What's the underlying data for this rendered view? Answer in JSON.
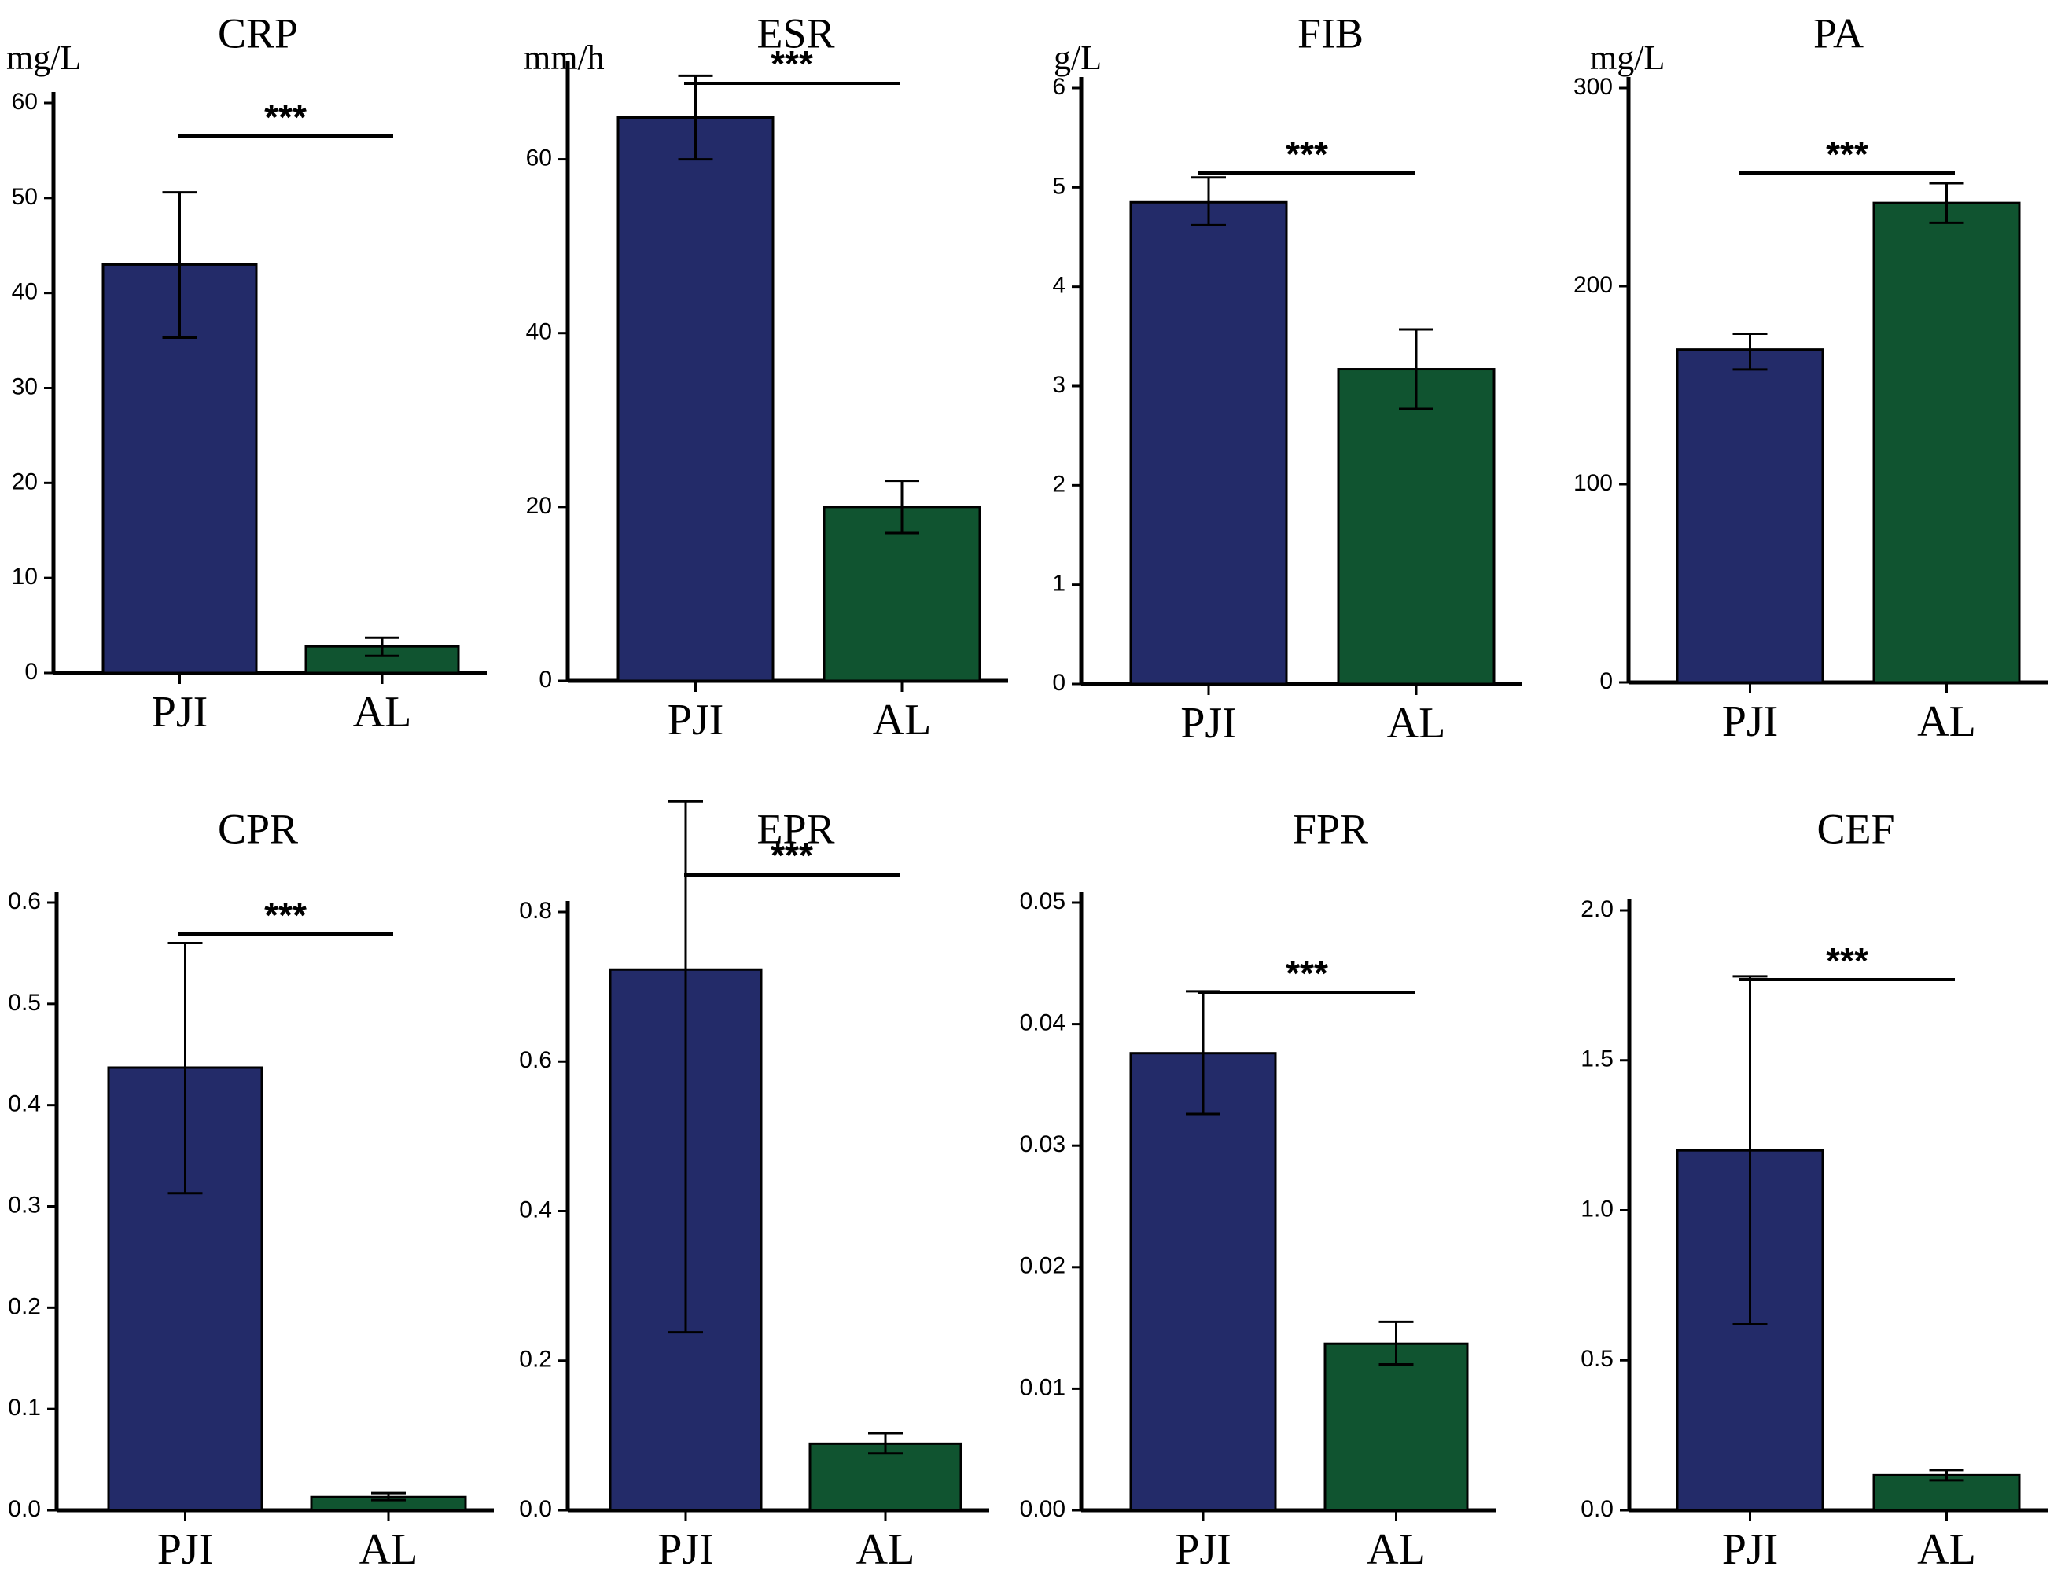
{
  "colors": {
    "pji": "#232b69",
    "al": "#105430"
  },
  "chart_data": [
    {
      "type": "bar",
      "title": "CRP",
      "ylabel": "mg/L",
      "ylim": [
        0,
        60
      ],
      "ticks": [
        "0",
        "10",
        "20",
        "30",
        "40",
        "50",
        "60"
      ],
      "categories": [
        "PJI",
        "AL"
      ],
      "values": [
        43,
        2.8
      ],
      "err_low": [
        35.3,
        1.8
      ],
      "err_high": [
        50.6,
        3.7
      ],
      "significance": "***"
    },
    {
      "type": "bar",
      "title": "ESR",
      "ylabel": "mm/h",
      "ylim": [
        0,
        70
      ],
      "ticks": [
        "0",
        "20",
        "40",
        "60"
      ],
      "categories": [
        "PJI",
        "AL"
      ],
      "values": [
        64.8,
        20
      ],
      "err_low": [
        60,
        17
      ],
      "err_high": [
        69.6,
        23
      ],
      "significance": "***"
    },
    {
      "type": "bar",
      "title": "FIB",
      "ylabel": "g/L",
      "ylim": [
        0,
        6
      ],
      "ticks": [
        "0",
        "1",
        "2",
        "3",
        "4",
        "5",
        "6"
      ],
      "categories": [
        "PJI",
        "AL"
      ],
      "values": [
        4.85,
        3.17
      ],
      "err_low": [
        4.62,
        2.77
      ],
      "err_high": [
        5.1,
        3.57
      ],
      "significance": "***"
    },
    {
      "type": "bar",
      "title": "PA",
      "ylabel": "mg/L",
      "ylim": [
        0,
        300
      ],
      "ticks": [
        "0",
        "100",
        "200",
        "300"
      ],
      "categories": [
        "PJI",
        "AL"
      ],
      "values": [
        168,
        242
      ],
      "err_low": [
        158,
        232
      ],
      "err_high": [
        176,
        252
      ],
      "significance": "***"
    },
    {
      "type": "bar",
      "title": "CPR",
      "ylabel": "",
      "ylim": [
        0,
        0.6
      ],
      "ticks": [
        "0.0",
        "0.1",
        "0.2",
        "0.3",
        "0.4",
        "0.5",
        "0.6"
      ],
      "categories": [
        "PJI",
        "AL"
      ],
      "values": [
        0.437,
        0.013
      ],
      "err_low": [
        0.313,
        0.01
      ],
      "err_high": [
        0.56,
        0.017
      ],
      "significance": "***"
    },
    {
      "type": "bar",
      "title": "EPR",
      "ylabel": "",
      "ylim": [
        0,
        0.8
      ],
      "ticks": [
        "0.0",
        "0.2",
        "0.4",
        "0.6",
        "0.8"
      ],
      "categories": [
        "PJI",
        "AL"
      ],
      "values": [
        0.723,
        0.089
      ],
      "err_low": [
        0.238,
        0.076
      ],
      "err_high": [
        0.948,
        0.103
      ],
      "significance": "***"
    },
    {
      "type": "bar",
      "title": "FPR",
      "ylabel": "",
      "ylim": [
        0,
        0.05
      ],
      "ticks": [
        "0.00",
        "0.01",
        "0.02",
        "0.03",
        "0.04",
        "0.05"
      ],
      "categories": [
        "PJI",
        "AL"
      ],
      "values": [
        0.0376,
        0.0137
      ],
      "err_low": [
        0.0326,
        0.012
      ],
      "err_high": [
        0.0427,
        0.0155
      ],
      "significance": "***"
    },
    {
      "type": "bar",
      "title": "CEF",
      "ylabel": "",
      "ylim": [
        0,
        2.0
      ],
      "ticks": [
        "0.0",
        "0.5",
        "1.0",
        "1.5",
        "2.0"
      ],
      "categories": [
        "PJI",
        "AL"
      ],
      "values": [
        1.2,
        0.117
      ],
      "err_low": [
        0.62,
        0.1
      ],
      "err_high": [
        1.78,
        0.134
      ],
      "significance": "***"
    }
  ]
}
